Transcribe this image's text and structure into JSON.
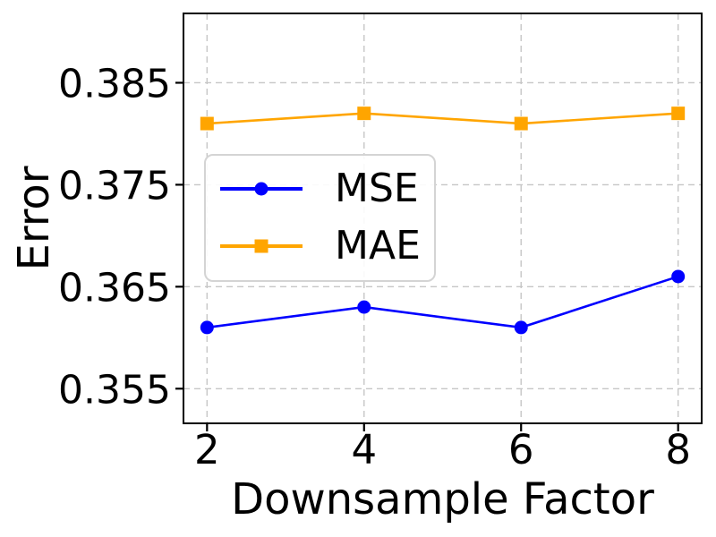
{
  "chart_data": {
    "type": "line",
    "x": [
      2,
      4,
      6,
      8
    ],
    "series": [
      {
        "name": "MSE",
        "values": [
          0.361,
          0.363,
          0.361,
          0.366
        ],
        "color": "#0000ff",
        "marker": "circle"
      },
      {
        "name": "MAE",
        "values": [
          0.381,
          0.382,
          0.381,
          0.382
        ],
        "color": "#ffa500",
        "marker": "square"
      }
    ],
    "title": "",
    "xlabel": "Downsample Factor",
    "ylabel": "Error",
    "xticks": [
      2,
      4,
      6,
      8
    ],
    "yticks": [
      0.355,
      0.365,
      0.375,
      0.385
    ],
    "xlim": [
      1.7,
      8.3
    ],
    "ylim": [
      0.3516,
      0.3918
    ],
    "grid": true,
    "grid_style": "dashed",
    "legend_position": "center-left-inside",
    "colors": {
      "grid": "#c6c6c6",
      "axis": "#000000",
      "background": "#ffffff",
      "text": "#000000"
    }
  }
}
